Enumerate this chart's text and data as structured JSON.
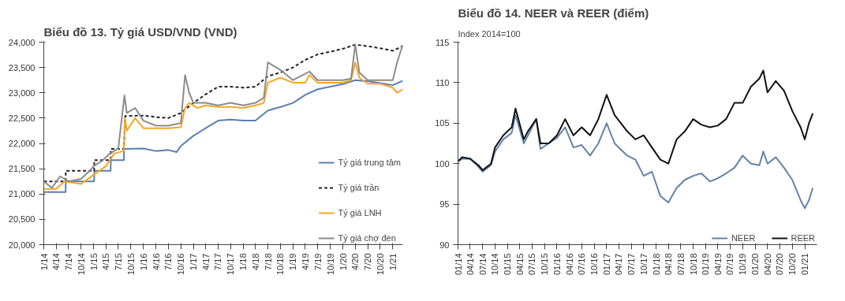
{
  "chart_data": [
    {
      "type": "line",
      "title": "Biểu đồ 13. Tỷ giá USD/VND (VND)",
      "legend": "bottom right",
      "grid": false,
      "xlim": [
        "2014-01",
        "2021-03-15"
      ],
      "ylim": [
        20000,
        24000
      ],
      "yticks": [
        {
          "value": 20000,
          "label": "20,000"
        },
        {
          "value": 20500,
          "label": "20,500"
        },
        {
          "value": 21000,
          "label": "21,000"
        },
        {
          "value": 21500,
          "label": "21,500"
        },
        {
          "value": 22000,
          "label": "22,000"
        },
        {
          "value": 22500,
          "label": "22,500"
        },
        {
          "value": 23000,
          "label": "23,000"
        },
        {
          "value": 23500,
          "label": "23,500"
        },
        {
          "value": 24000,
          "label": "24,000"
        }
      ],
      "xticks": [
        {
          "value": "2014-01",
          "label": "1/14"
        },
        {
          "value": "2014-04",
          "label": "4/14"
        },
        {
          "value": "2014-07",
          "label": "7/14"
        },
        {
          "value": "2014-10",
          "label": "10/14"
        },
        {
          "value": "2015-01",
          "label": "1/15"
        },
        {
          "value": "2015-04",
          "label": "4/15"
        },
        {
          "value": "2015-07",
          "label": "7/15"
        },
        {
          "value": "2015-10",
          "label": "10/15"
        },
        {
          "value": "2016-01",
          "label": "1/16"
        },
        {
          "value": "2016-04",
          "label": "4/16"
        },
        {
          "value": "2016-07",
          "label": "7/16"
        },
        {
          "value": "2016-10",
          "label": "10/16"
        },
        {
          "value": "2017-01",
          "label": "1/17"
        },
        {
          "value": "2017-04",
          "label": "4/17"
        },
        {
          "value": "2017-07",
          "label": "7/17"
        },
        {
          "value": "2017-10",
          "label": "10/17"
        },
        {
          "value": "2018-01",
          "label": "1/18"
        },
        {
          "value": "2018-04",
          "label": "4/18"
        },
        {
          "value": "2018-07",
          "label": "7/18"
        },
        {
          "value": "2018-10",
          "label": "10/18"
        },
        {
          "value": "2019-01",
          "label": "1/19"
        },
        {
          "value": "2019-04",
          "label": "4/19"
        },
        {
          "value": "2019-07",
          "label": "7/19"
        },
        {
          "value": "2019-10",
          "label": "10/19"
        },
        {
          "value": "2020-01",
          "label": "1/20"
        },
        {
          "value": "2020-04",
          "label": "4/20"
        },
        {
          "value": "2020-07",
          "label": "7/20"
        },
        {
          "value": "2020-10",
          "label": "10/20"
        },
        {
          "value": "2021-01",
          "label": "1/21"
        }
      ],
      "series": [
        {
          "name": "Tỷ giá trung tâm",
          "color": "#5b7fb0",
          "line_style": "solid",
          "x": [
            "2014-01",
            "2014-06-10",
            "2014-06-11",
            "2015-01-05",
            "2015-01-06",
            "2015-05-06",
            "2015-05-07",
            "2015-08-11",
            "2015-08-12",
            "2016-01",
            "2016-04",
            "2016-07",
            "2016-09",
            "2016-10",
            "2017-01",
            "2017-04",
            "2017-07",
            "2017-10",
            "2018-01",
            "2018-04",
            "2018-07",
            "2018-10",
            "2019-01",
            "2019-04",
            "2019-07",
            "2019-10",
            "2020-01",
            "2020-04",
            "2020-07",
            "2020-10",
            "2021-01",
            "2021-03-15"
          ],
          "values": [
            21040,
            21040,
            21250,
            21250,
            21460,
            21460,
            21670,
            21670,
            21890,
            21900,
            21850,
            21870,
            21830,
            21950,
            22150,
            22300,
            22450,
            22470,
            22450,
            22450,
            22650,
            22720,
            22800,
            22960,
            23070,
            23120,
            23170,
            23250,
            23230,
            23190,
            23150,
            23240
          ]
        },
        {
          "name": "Tỷ giá trần",
          "color": "#222222",
          "line_style": "dashed",
          "x": [
            "2014-01",
            "2014-06-10",
            "2014-06-11",
            "2015-01-05",
            "2015-01-06",
            "2015-05-06",
            "2015-05-07",
            "2015-08-11",
            "2015-08-20",
            "2016-01",
            "2016-04",
            "2016-07",
            "2016-10",
            "2017-01",
            "2017-04",
            "2017-07",
            "2017-10",
            "2018-01",
            "2018-04",
            "2018-07",
            "2018-10",
            "2019-01",
            "2019-04",
            "2019-07",
            "2019-10",
            "2020-01",
            "2020-04",
            "2020-07",
            "2020-10",
            "2021-01",
            "2021-03-15"
          ],
          "values": [
            21250,
            21250,
            21460,
            21460,
            21670,
            21670,
            21890,
            21890,
            22540,
            22550,
            22520,
            22500,
            22600,
            22800,
            22970,
            23120,
            23120,
            23100,
            23120,
            23330,
            23400,
            23500,
            23650,
            23760,
            23810,
            23870,
            23950,
            23920,
            23880,
            23830,
            23920
          ]
        },
        {
          "name": "Tỷ giá LNH",
          "color": "#f5a623",
          "line_style": "solid",
          "x": [
            "2014-01",
            "2014-04",
            "2014-06",
            "2014-10",
            "2015-01",
            "2015-04",
            "2015-06",
            "2015-08-10",
            "2015-08-20",
            "2015-09",
            "2015-11",
            "2016-01",
            "2016-04",
            "2016-07",
            "2016-10",
            "2016-11",
            "2016-12",
            "2017-02",
            "2017-04",
            "2017-07",
            "2017-10",
            "2018-01",
            "2018-04",
            "2018-06",
            "2018-07",
            "2018-10",
            "2019-01",
            "2019-04",
            "2019-05",
            "2019-07",
            "2019-10",
            "2020-01",
            "2020-03",
            "2020-04",
            "2020-05",
            "2020-07",
            "2020-10",
            "2021-01",
            "2021-02",
            "2021-03-15"
          ],
          "values": [
            21100,
            21100,
            21250,
            21200,
            21380,
            21550,
            21800,
            21850,
            22500,
            22250,
            22500,
            22300,
            22300,
            22300,
            22320,
            22700,
            22800,
            22700,
            22750,
            22720,
            22720,
            22700,
            22750,
            22800,
            23200,
            23300,
            23200,
            23200,
            23350,
            23200,
            23200,
            23200,
            23250,
            23600,
            23300,
            23180,
            23180,
            23100,
            23000,
            23070
          ]
        },
        {
          "name": "Tỷ giá chợ đen",
          "color": "#8c8c8c",
          "line_style": "solid",
          "x": [
            "2014-01",
            "2014-03",
            "2014-05",
            "2014-07",
            "2014-10",
            "2014-12",
            "2015-01",
            "2015-03",
            "2015-05",
            "2015-07",
            "2015-08-15",
            "2015-09",
            "2015-11",
            "2016-01",
            "2016-04",
            "2016-07",
            "2016-10",
            "2016-11",
            "2016-12",
            "2017-01",
            "2017-04",
            "2017-07",
            "2017-10",
            "2018-01",
            "2018-04",
            "2018-06",
            "2018-07",
            "2018-10",
            "2019-01",
            "2019-05",
            "2019-07",
            "2019-10",
            "2020-01",
            "2020-03",
            "2020-04",
            "2020-05",
            "2020-07",
            "2020-10",
            "2021-01",
            "2021-02",
            "2021-03-15"
          ],
          "values": [
            21250,
            21120,
            21350,
            21250,
            21300,
            21450,
            21550,
            21650,
            21800,
            21900,
            22950,
            22600,
            22700,
            22450,
            22350,
            22350,
            22400,
            23350,
            23000,
            22800,
            22800,
            22750,
            22800,
            22750,
            22800,
            22900,
            23600,
            23450,
            23250,
            23420,
            23250,
            23250,
            23250,
            23280,
            23950,
            23400,
            23250,
            23250,
            23250,
            23600,
            23950
          ]
        }
      ]
    },
    {
      "type": "line",
      "title": "Biểu đồ 14. NEER và REER (điểm)",
      "ylabel": "Index 2014=100",
      "legend": "bottom right",
      "grid": false,
      "xlim": [
        "2014-01",
        "2021-04"
      ],
      "ylim": [
        90,
        115
      ],
      "yticks": [
        90,
        95,
        100,
        105,
        110,
        115
      ],
      "xticks": [
        {
          "value": "2014-01",
          "label": "01/14"
        },
        {
          "value": "2014-04",
          "label": "04/14"
        },
        {
          "value": "2014-07",
          "label": "07/14"
        },
        {
          "value": "2014-10",
          "label": "10/14"
        },
        {
          "value": "2015-01",
          "label": "01/15"
        },
        {
          "value": "2015-04",
          "label": "04/15"
        },
        {
          "value": "2015-07",
          "label": "07/15"
        },
        {
          "value": "2015-10",
          "label": "10/15"
        },
        {
          "value": "2016-01",
          "label": "01/16"
        },
        {
          "value": "2016-04",
          "label": "04/16"
        },
        {
          "value": "2016-07",
          "label": "07/16"
        },
        {
          "value": "2016-10",
          "label": "10/16"
        },
        {
          "value": "2017-01",
          "label": "01/17"
        },
        {
          "value": "2017-04",
          "label": "04/17"
        },
        {
          "value": "2017-07",
          "label": "07/17"
        },
        {
          "value": "2017-10",
          "label": "10/17"
        },
        {
          "value": "2018-01",
          "label": "01/18"
        },
        {
          "value": "2018-04",
          "label": "04/18"
        },
        {
          "value": "2018-07",
          "label": "07/18"
        },
        {
          "value": "2018-10",
          "label": "10/18"
        },
        {
          "value": "2019-01",
          "label": "01/19"
        },
        {
          "value": "2019-04",
          "label": "04/19"
        },
        {
          "value": "2019-07",
          "label": "07/19"
        },
        {
          "value": "2019-10",
          "label": "10/19"
        },
        {
          "value": "2020-01",
          "label": "01/20"
        },
        {
          "value": "2020-04",
          "label": "04/20"
        },
        {
          "value": "2020-07",
          "label": "07/20"
        },
        {
          "value": "2020-10",
          "label": "10/20"
        },
        {
          "value": "2021-01",
          "label": "01/21"
        }
      ],
      "x": [
        "2014-01",
        "2014-02",
        "2014-04",
        "2014-06",
        "2014-07",
        "2014-09",
        "2014-10",
        "2014-12",
        "2015-02",
        "2015-03",
        "2015-05",
        "2015-06",
        "2015-08",
        "2015-09",
        "2015-11",
        "2016-01",
        "2016-03",
        "2016-05",
        "2016-07",
        "2016-09",
        "2016-11",
        "2017-01",
        "2017-03",
        "2017-06",
        "2017-08",
        "2017-10",
        "2017-12",
        "2018-02",
        "2018-04",
        "2018-06",
        "2018-08",
        "2018-10",
        "2018-12",
        "2019-02",
        "2019-04",
        "2019-06",
        "2019-08",
        "2019-10",
        "2019-12",
        "2020-02",
        "2020-03",
        "2020-04",
        "2020-06",
        "2020-08",
        "2020-10",
        "2020-12",
        "2021-01",
        "2021-02",
        "2021-03"
      ],
      "series": [
        {
          "name": "NEER",
          "color": "#6383a8",
          "line_style": "solid",
          "values": [
            100.3,
            100.6,
            100.6,
            99.6,
            99,
            99.8,
            101.5,
            103,
            103.8,
            106,
            102.5,
            103.5,
            105.5,
            101.8,
            102.5,
            103.2,
            104.5,
            102,
            102.3,
            101,
            102.5,
            105,
            102.5,
            101,
            100.5,
            98.5,
            99,
            96,
            95.2,
            97,
            98,
            98.5,
            98.8,
            97.8,
            98.2,
            98.8,
            99.5,
            101,
            100,
            99.8,
            101.5,
            100,
            100.8,
            99.5,
            98,
            95.5,
            94.5,
            95.5,
            97
          ]
        },
        {
          "name": "REER",
          "color": "#111111",
          "line_style": "solid",
          "values": [
            100.3,
            100.8,
            100.6,
            99.8,
            99.2,
            100,
            102,
            103.5,
            104.5,
            106.8,
            103,
            104,
            105.5,
            102.5,
            102.5,
            103.5,
            105.5,
            103.5,
            104.5,
            103.5,
            105.5,
            108.5,
            106,
            104,
            103,
            103.5,
            102,
            100.5,
            100,
            103,
            104,
            105.5,
            104.8,
            104.5,
            104.7,
            105.5,
            107.5,
            107.5,
            109.5,
            110.5,
            111.5,
            108.8,
            110.2,
            109,
            106.5,
            104.5,
            103,
            105,
            106.2
          ]
        }
      ]
    }
  ]
}
